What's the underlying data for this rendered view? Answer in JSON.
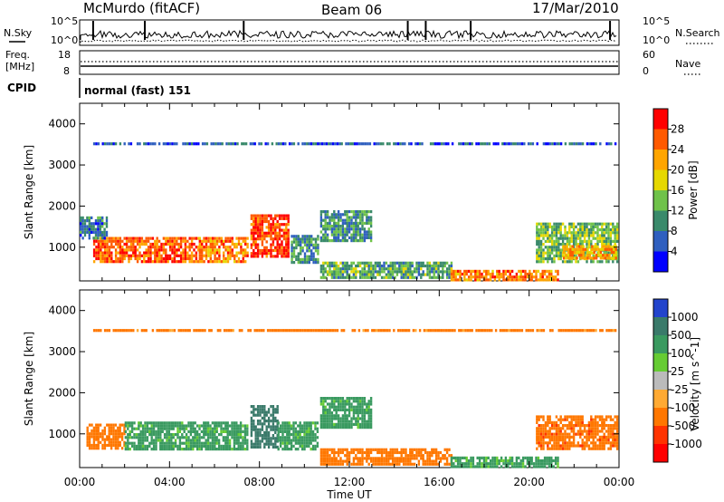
{
  "header": {
    "station": "McMurdo (fitACF)",
    "beam": "Beam 06",
    "date": "17/Mar/2010"
  },
  "panels": {
    "noise": {
      "left_label": "N.Sky",
      "left_ticks": [
        "10^5",
        "10^0"
      ],
      "right_label": "N.Search",
      "right_ticks": [
        "10^5",
        "10^0"
      ]
    },
    "freq": {
      "left_label_1": "Freq.",
      "left_label_2": "[MHz]",
      "left_ticks": [
        "18",
        "8"
      ],
      "right_label": "Nave",
      "right_ticks": [
        "60",
        "0"
      ]
    },
    "cpid": {
      "label": "CPID",
      "value": "normal (fast) 151"
    }
  },
  "chart_data": [
    {
      "type": "heatmap",
      "title": "",
      "parameter": "Power",
      "colorbar_label": "Power [dB]",
      "xlabel": "Time UT",
      "ylabel": "Slant Range [km]",
      "xlim": [
        "00:00",
        "24:00"
      ],
      "ylim": [
        180,
        4500
      ],
      "x_ticks": [
        "00:00",
        "04:00",
        "08:00",
        "12:00",
        "16:00",
        "20:00",
        "00:00"
      ],
      "y_ticks": [
        1000,
        2000,
        3000,
        4000
      ],
      "colorbar_ticks": [
        4,
        8,
        12,
        16,
        20,
        24,
        28
      ],
      "colorbar_colors": [
        "#0000ff",
        "#2f5fbf",
        "#3a8a6b",
        "#6fc24a",
        "#e6d800",
        "#ffa500",
        "#ff5a00",
        "#ff0000"
      ],
      "regions": [
        {
          "t0": 0.6,
          "t1": 5.3,
          "r0": 650,
          "r1": 1250,
          "level": 26
        },
        {
          "t0": 0.0,
          "t1": 1.2,
          "r0": 1250,
          "r1": 1750,
          "level": 8
        },
        {
          "t0": 5.3,
          "t1": 7.5,
          "r0": 650,
          "r1": 1250,
          "level": 24
        },
        {
          "t0": 7.6,
          "t1": 9.3,
          "r0": 750,
          "r1": 1800,
          "level": 28
        },
        {
          "t0": 9.4,
          "t1": 10.6,
          "r0": 650,
          "r1": 1300,
          "level": 10
        },
        {
          "t0": 10.7,
          "t1": 13.0,
          "r0": 1150,
          "r1": 1900,
          "level": 10
        },
        {
          "t0": 10.7,
          "t1": 16.5,
          "r0": 270,
          "r1": 650,
          "level": 12
        },
        {
          "t0": 16.5,
          "t1": 21.3,
          "r0": 230,
          "r1": 450,
          "level": 24
        },
        {
          "t0": 20.3,
          "t1": 23.9,
          "r0": 650,
          "r1": 1600,
          "level": 14
        },
        {
          "t0": 21.5,
          "t1": 23.9,
          "r0": 750,
          "r1": 1050,
          "level": 22
        },
        {
          "t0": 0.6,
          "t1": 23.8,
          "r0": 3480,
          "r1": 3550,
          "level": 6
        }
      ]
    },
    {
      "type": "heatmap",
      "title": "",
      "parameter": "Velocity",
      "colorbar_label": "Velocity [m s^-1]",
      "xlabel": "Time UT",
      "ylabel": "Slant Range [km]",
      "xlim": [
        "00:00",
        "24:00"
      ],
      "ylim": [
        180,
        4500
      ],
      "x_ticks": [
        "00:00",
        "04:00",
        "08:00",
        "12:00",
        "16:00",
        "20:00",
        "00:00"
      ],
      "y_ticks": [
        1000,
        2000,
        3000,
        4000
      ],
      "colorbar_ticks": [
        1000,
        500,
        100,
        25,
        -25,
        -100,
        -500,
        -1000
      ],
      "colorbar_colors": [
        "#2244cc",
        "#3a7a6a",
        "#3a9a60",
        "#66cc33",
        "#bbbbbb",
        "#ffaa33",
        "#ff7700",
        "#ff3300",
        "#ff0000"
      ],
      "regions": [
        {
          "t0": 0.3,
          "t1": 2.0,
          "r0": 650,
          "r1": 1250,
          "level": -300
        },
        {
          "t0": 2.0,
          "t1": 7.5,
          "r0": 650,
          "r1": 1300,
          "level": 200
        },
        {
          "t0": 7.6,
          "t1": 8.8,
          "r0": 650,
          "r1": 1700,
          "level": 800
        },
        {
          "t0": 8.8,
          "t1": 10.6,
          "r0": 650,
          "r1": 1300,
          "level": 200
        },
        {
          "t0": 10.7,
          "t1": 13.0,
          "r0": 1150,
          "r1": 1900,
          "level": 200
        },
        {
          "t0": 10.7,
          "t1": 16.5,
          "r0": 270,
          "r1": 650,
          "level": -300
        },
        {
          "t0": 16.5,
          "t1": 21.3,
          "r0": 230,
          "r1": 450,
          "level": 200
        },
        {
          "t0": 20.3,
          "t1": 23.9,
          "r0": 650,
          "r1": 1450,
          "level": -400
        },
        {
          "t0": 0.6,
          "t1": 23.8,
          "r0": 3480,
          "r1": 3550,
          "level": -200
        }
      ]
    }
  ]
}
